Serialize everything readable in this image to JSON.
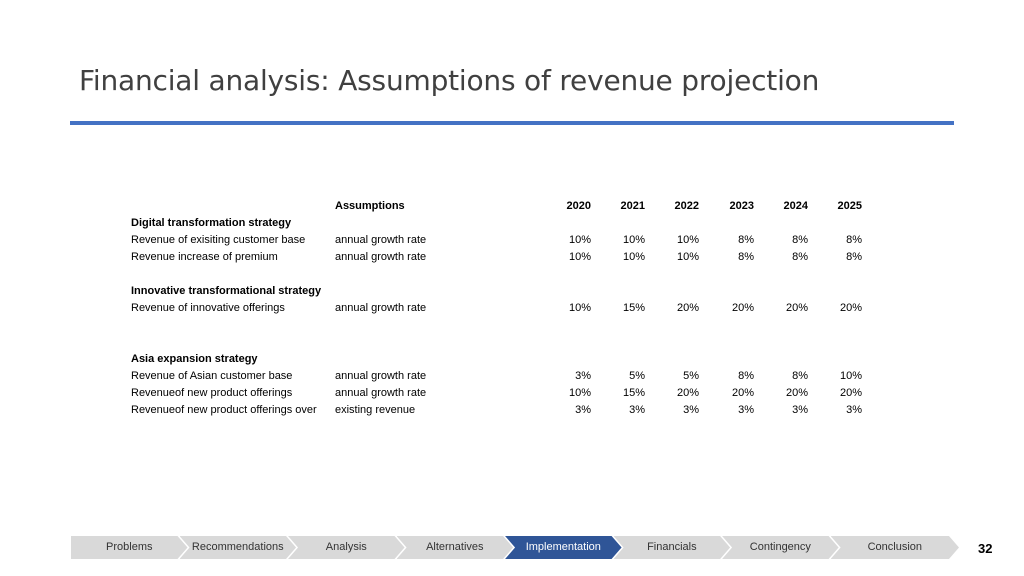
{
  "slide": {
    "title": "Financial analysis: Assumptions of revenue projection",
    "page_number": "32"
  },
  "table": {
    "header": {
      "assumptions_label": "Assumptions",
      "years": [
        "2020",
        "2021",
        "2022",
        "2023",
        "2024",
        "2025"
      ]
    },
    "sections": [
      {
        "heading": "Digital transformation strategy",
        "rows": [
          {
            "label": "Revenue of exisiting customer base",
            "assumption": "annual growth rate",
            "values": [
              "10%",
              "10%",
              "10%",
              "8%",
              "8%",
              "8%"
            ]
          },
          {
            "label": "Revenue increase of premium",
            "assumption": "annual growth rate",
            "values": [
              "10%",
              "10%",
              "10%",
              "8%",
              "8%",
              "8%"
            ]
          }
        ]
      },
      {
        "heading": "Innovative transformational strategy",
        "rows": [
          {
            "label": "Revenue of innovative offerings",
            "assumption": "annual growth rate",
            "values": [
              "10%",
              "15%",
              "20%",
              "20%",
              "20%",
              "20%"
            ]
          }
        ]
      },
      {
        "heading": "Asia expansion strategy",
        "rows": [
          {
            "label": "Revenue of Asian customer base",
            "assumption": "annual growth rate",
            "values": [
              "3%",
              "5%",
              "5%",
              "8%",
              "8%",
              "10%"
            ]
          },
          {
            "label": "Revenueof new product offerings",
            "assumption": "annual growth rate",
            "values": [
              "10%",
              "15%",
              "20%",
              "20%",
              "20%",
              "20%"
            ]
          },
          {
            "label": "Revenueof new product offerings over",
            "assumption": "existing revenue",
            "values": [
              "3%",
              "3%",
              "3%",
              "3%",
              "3%",
              "3%"
            ]
          }
        ]
      }
    ]
  },
  "nav": {
    "items": [
      "Problems",
      "Recommendations",
      "Analysis",
      "Alternatives",
      "Implementation",
      "Financials",
      "Contingency",
      "Conclusion"
    ],
    "active": "Implementation"
  },
  "colors": {
    "accent": "#4472c4",
    "nav_active": "#2f5597",
    "nav_inactive": "#d9d9d9"
  }
}
